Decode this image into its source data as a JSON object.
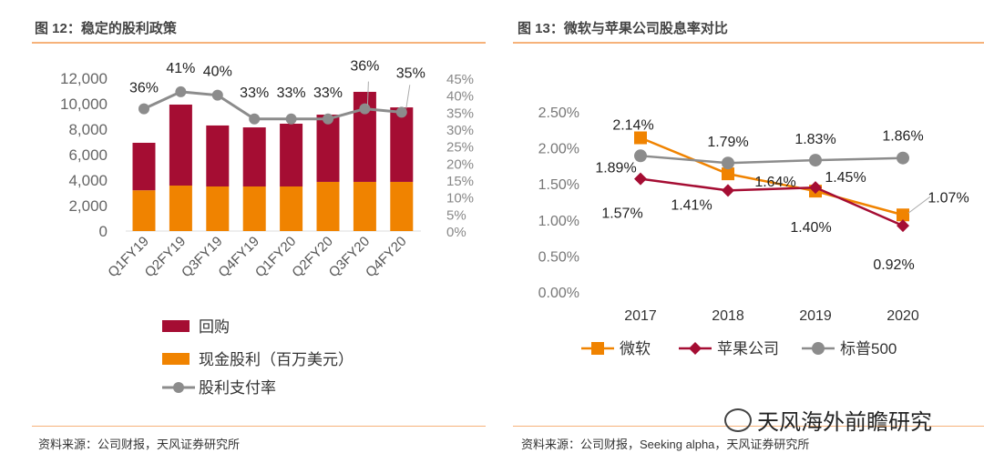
{
  "left": {
    "title": "图 12：稳定的股利政策",
    "source": "资料来源：公司财报，天风证券研究所"
  },
  "right": {
    "title": "图 13：微软与苹果公司股息率对比",
    "source": "资料来源：公司财报，Seeking alpha，天风证券研究所"
  },
  "watermark": "天风海外前瞻研究",
  "colors": {
    "buyback": "#a50d33",
    "dividend": "#f08300",
    "ratio": "#8c8c8c",
    "msft": "#f08300",
    "aapl": "#a50d33",
    "sp": "#8c8c8c"
  },
  "chart_data": [
    {
      "type": "bar",
      "stacked": true,
      "categories": [
        "Q1FY19",
        "Q2FY19",
        "Q3FY19",
        "Q4FY19",
        "Q1FY20",
        "Q2FY20",
        "Q3FY20",
        "Q4FY20"
      ],
      "series": [
        {
          "name": "现金股利（百万美元）",
          "values": [
            3200,
            3570,
            3500,
            3500,
            3500,
            3860,
            3860,
            3860
          ]
        },
        {
          "name": "回购",
          "values": [
            3730,
            6360,
            4790,
            4640,
            4930,
            5280,
            7070,
            5850
          ]
        },
        {
          "name": "股利支付率",
          "type": "line",
          "axis": "right",
          "values": [
            36,
            41,
            40,
            33,
            33,
            33,
            36,
            35
          ],
          "labels": [
            "36%",
            "41%",
            "40%",
            "33%",
            "33%",
            "33%",
            "36%",
            "35%"
          ]
        }
      ],
      "ylim": [
        0,
        12000
      ],
      "yticks": [
        "0",
        "2,000",
        "4,000",
        "6,000",
        "8,000",
        "10,000",
        "12,000"
      ],
      "y2lim": [
        0,
        45
      ],
      "y2ticks": [
        "0%",
        "5%",
        "10%",
        "15%",
        "20%",
        "25%",
        "30%",
        "35%",
        "40%",
        "45%"
      ],
      "legend": [
        "回购",
        "现金股利（百万美元）",
        "股利支付率"
      ],
      "legend_position": "bottom"
    },
    {
      "type": "line",
      "categories": [
        "2017",
        "2018",
        "2019",
        "2020"
      ],
      "series": [
        {
          "name": "微软",
          "values": [
            2.14,
            1.64,
            1.4,
            1.07
          ],
          "labels": [
            "2.14%",
            "1.64%",
            "1.40%",
            "1.07%"
          ]
        },
        {
          "name": "苹果公司",
          "values": [
            1.57,
            1.41,
            1.45,
            0.92
          ],
          "labels": [
            "1.57%",
            "1.41%",
            "1.45%",
            "0.92%"
          ]
        },
        {
          "name": "标普500",
          "values": [
            1.89,
            1.79,
            1.83,
            1.86
          ],
          "labels": [
            "1.89%",
            "1.79%",
            "1.83%",
            "1.86%"
          ]
        }
      ],
      "ylim": [
        0,
        2.5
      ],
      "yticks": [
        "0.00%",
        "0.50%",
        "1.00%",
        "1.50%",
        "2.00%",
        "2.50%"
      ],
      "legend": [
        "微软",
        "苹果公司",
        "标普500"
      ],
      "legend_position": "bottom"
    }
  ]
}
